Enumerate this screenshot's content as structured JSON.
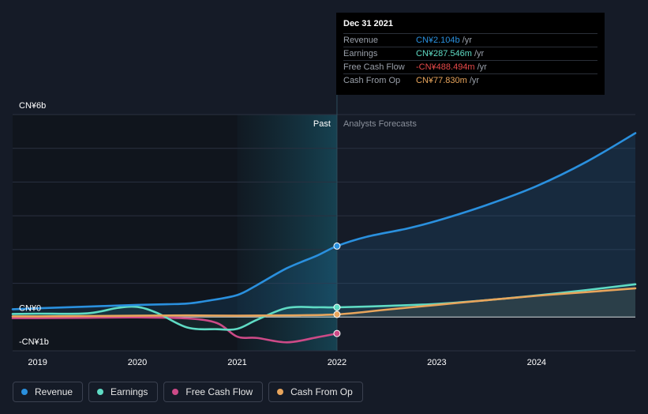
{
  "chart_data": {
    "type": "line",
    "y_unit": "CN¥ billions",
    "ylim": [
      -1,
      6
    ],
    "y_axis_labels": [
      {
        "text": "CN¥6b",
        "value": 6
      },
      {
        "text": "CN¥0",
        "value": 0
      },
      {
        "text": "-CN¥1b",
        "value": -1
      }
    ],
    "x_ticks": [
      {
        "label": "2019",
        "value": 2019
      },
      {
        "label": "2020",
        "value": 2020
      },
      {
        "label": "2021",
        "value": 2021
      },
      {
        "label": "2022",
        "value": 2022
      },
      {
        "label": "2023",
        "value": 2023
      },
      {
        "label": "2024",
        "value": 2024
      }
    ],
    "xlim": [
      2018.75,
      2024.99
    ],
    "past_label": "Past",
    "forecast_label": "Analysts Forecasts",
    "past_end": 2022.0,
    "past_shade_start": 2021.0,
    "series": [
      {
        "name": "Revenue",
        "color": "#2a90de",
        "forecast": true,
        "points": [
          [
            2018.75,
            0.23
          ],
          [
            2019.0,
            0.26
          ],
          [
            2019.5,
            0.31
          ],
          [
            2020.0,
            0.36
          ],
          [
            2020.3,
            0.38
          ],
          [
            2020.5,
            0.4
          ],
          [
            2020.7,
            0.48
          ],
          [
            2021.0,
            0.65
          ],
          [
            2021.2,
            0.95
          ],
          [
            2021.5,
            1.45
          ],
          [
            2021.8,
            1.82
          ],
          [
            2022.0,
            2.104
          ],
          [
            2022.3,
            2.38
          ],
          [
            2022.7,
            2.62
          ],
          [
            2023.0,
            2.85
          ],
          [
            2023.5,
            3.32
          ],
          [
            2024.0,
            3.88
          ],
          [
            2024.5,
            4.6
          ],
          [
            2024.99,
            5.45
          ]
        ]
      },
      {
        "name": "Earnings",
        "color": "#5fdbc4",
        "forecast": true,
        "points": [
          [
            2018.75,
            0.09
          ],
          [
            2019.0,
            0.1
          ],
          [
            2019.5,
            0.11
          ],
          [
            2019.8,
            0.27
          ],
          [
            2020.0,
            0.3
          ],
          [
            2020.2,
            0.12
          ],
          [
            2020.5,
            -0.31
          ],
          [
            2020.8,
            -0.36
          ],
          [
            2021.0,
            -0.35
          ],
          [
            2021.2,
            -0.08
          ],
          [
            2021.5,
            0.27
          ],
          [
            2021.8,
            0.29
          ],
          [
            2022.0,
            0.2875
          ],
          [
            2022.5,
            0.33
          ],
          [
            2023.0,
            0.39
          ],
          [
            2023.5,
            0.5
          ],
          [
            2024.0,
            0.64
          ],
          [
            2024.5,
            0.8
          ],
          [
            2024.99,
            0.97
          ]
        ]
      },
      {
        "name": "Free Cash Flow",
        "color": "#cc4a87",
        "forecast": false,
        "points": [
          [
            2018.75,
            -0.03
          ],
          [
            2019.0,
            -0.03
          ],
          [
            2019.5,
            -0.02
          ],
          [
            2020.0,
            -0.01
          ],
          [
            2020.5,
            -0.04
          ],
          [
            2020.8,
            -0.18
          ],
          [
            2021.0,
            -0.58
          ],
          [
            2021.2,
            -0.62
          ],
          [
            2021.5,
            -0.75
          ],
          [
            2021.8,
            -0.6
          ],
          [
            2022.0,
            -0.488
          ]
        ]
      },
      {
        "name": "Cash From Op",
        "color": "#e8a55c",
        "forecast": true,
        "points": [
          [
            2018.75,
            0.02
          ],
          [
            2019.0,
            0.02
          ],
          [
            2019.5,
            0.03
          ],
          [
            2020.0,
            0.04
          ],
          [
            2020.5,
            0.05
          ],
          [
            2021.0,
            0.04
          ],
          [
            2021.5,
            0.05
          ],
          [
            2022.0,
            0.0778
          ],
          [
            2022.5,
            0.22
          ],
          [
            2023.0,
            0.36
          ],
          [
            2023.5,
            0.5
          ],
          [
            2024.0,
            0.63
          ],
          [
            2024.5,
            0.74
          ],
          [
            2024.99,
            0.85
          ]
        ]
      }
    ]
  },
  "tooltip": {
    "date": "Dec 31 2021",
    "rows": [
      {
        "label": "Revenue",
        "value": "CN¥2.104b",
        "unit": "/yr",
        "color": "#2a90de"
      },
      {
        "label": "Earnings",
        "value": "CN¥287.546m",
        "unit": "/yr",
        "color": "#5fdbc4"
      },
      {
        "label": "Free Cash Flow",
        "value": "-CN¥488.494m",
        "unit": "/yr",
        "color": "#e84a4a"
      },
      {
        "label": "Cash From Op",
        "value": "CN¥77.830m",
        "unit": "/yr",
        "color": "#e8a55c"
      }
    ]
  },
  "legend": [
    {
      "label": "Revenue",
      "color": "#2a90de"
    },
    {
      "label": "Earnings",
      "color": "#5fdbc4"
    },
    {
      "label": "Free Cash Flow",
      "color": "#cc4a87"
    },
    {
      "label": "Cash From Op",
      "color": "#e8a55c"
    }
  ]
}
